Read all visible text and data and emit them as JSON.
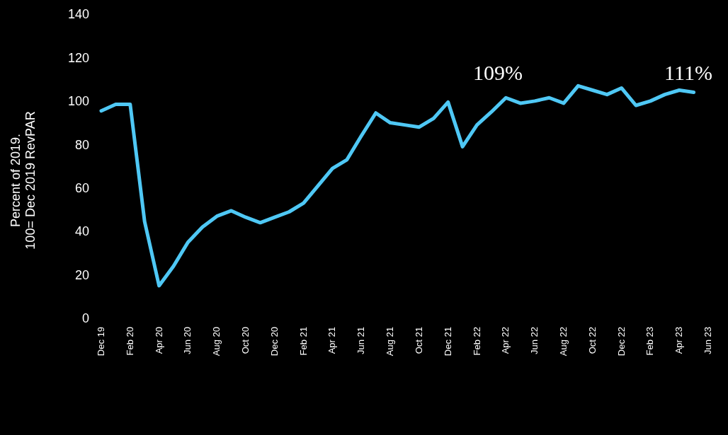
{
  "chart_data": {
    "type": "line",
    "ylabel": "Percent of 2019.\n100= Dec 2019 RevPAR",
    "categories": [
      "Dec 19",
      null,
      "Feb 20",
      null,
      "Apr 20",
      null,
      "Jun 20",
      null,
      "Aug 20",
      null,
      "Oct 20",
      null,
      "Dec 20",
      null,
      "Feb 21",
      null,
      "Apr 21",
      null,
      "Jun 21",
      null,
      "Aug 21",
      null,
      "Oct 21",
      null,
      "Dec 21",
      null,
      "Feb 22",
      null,
      "Apr 22",
      null,
      "Jun 22",
      null,
      "Aug 22",
      null,
      "Oct 22",
      null,
      "Dec 22",
      null,
      "Feb 23",
      null,
      "Apr 23",
      null,
      "Jun 23"
    ],
    "series": [
      {
        "color": "#4fc8f5",
        "values": [
          95.5,
          98.5,
          98.5,
          44.5,
          15,
          24,
          35,
          42,
          47,
          49.5,
          46.5,
          44,
          46.5,
          49,
          53,
          61,
          69,
          73,
          84,
          94.5,
          90,
          89,
          88,
          92,
          99.5,
          79,
          89,
          95,
          101.5,
          99,
          100,
          101.5,
          99,
          107,
          105,
          103,
          106,
          98,
          100,
          103,
          105,
          104,
          null
        ]
      }
    ],
    "ylim": [
      0,
      140
    ],
    "yticks": [
      0,
      20,
      40,
      60,
      80,
      100,
      120,
      140
    ],
    "grid": false,
    "marker": "none",
    "line_style": "solid",
    "annotations": [
      "109%",
      "111%"
    ]
  }
}
